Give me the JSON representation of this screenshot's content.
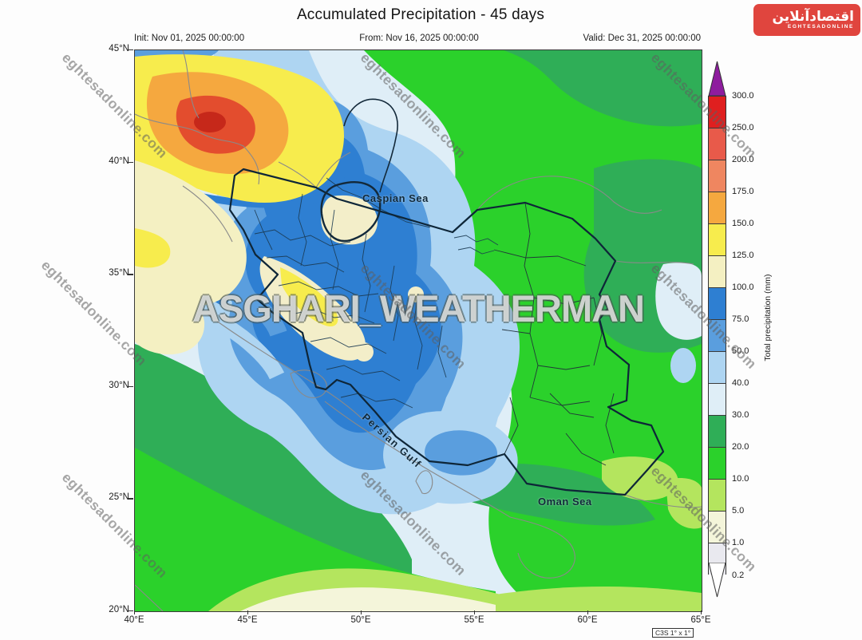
{
  "header": {
    "title": "Accumulated Precipitation - 45 days",
    "init": "Init: Nov 01, 2025 00:00:00",
    "from": "From: Nov 16, 2025 00:00:00",
    "valid": "Valid: Dec 31, 2025 00:00:00"
  },
  "logo": {
    "persian": "اقتصادآنلاین",
    "english": "EGHTESADONLINE"
  },
  "watermark": {
    "text": "eghtesadonline.com"
  },
  "map": {
    "watermark_big": "ASGHARI_WEATHERMAN",
    "grid_note": "C3S 1° x 1°",
    "labels": {
      "caspian": "Caspian Sea",
      "persian_gulf": "Persian Gulf",
      "oman": "Oman Sea"
    },
    "y_ticks": [
      "45°N",
      "40°N",
      "35°N",
      "30°N",
      "25°N",
      "20°N"
    ],
    "x_ticks": [
      "40°E",
      "45°E",
      "50°E",
      "55°E",
      "60°E",
      "65°E"
    ]
  },
  "colorbar": {
    "label": "Total precipitation (mm)",
    "over_color": "#8e1c9e",
    "under_color": "#ffffff",
    "bottom_label": "0.2",
    "segments": [
      {
        "top_label": "300.0",
        "color": "#df1f1f"
      },
      {
        "top_label": "250.0",
        "color": "#e85a4a"
      },
      {
        "top_label": "200.0",
        "color": "#ef8660"
      },
      {
        "top_label": "175.0",
        "color": "#f5a83f"
      },
      {
        "top_label": "150.0",
        "color": "#f7ec4d"
      },
      {
        "top_label": "125.0",
        "color": "#f4f0c2"
      },
      {
        "top_label": "100.0",
        "color": "#2e7fd2"
      },
      {
        "top_label": "75.0",
        "color": "#5a9ede"
      },
      {
        "top_label": "50.0",
        "color": "#aed5f2"
      },
      {
        "top_label": "40.0",
        "color": "#dfeef7"
      },
      {
        "top_label": "30.0",
        "color": "#2fae57"
      },
      {
        "top_label": "20.0",
        "color": "#2bd12b"
      },
      {
        "top_label": "10.0",
        "color": "#b4e55e"
      },
      {
        "top_label": "5.0",
        "color": "#f4f5da"
      },
      {
        "top_label": "1.0",
        "color": "#e9e9ef"
      }
    ]
  },
  "palette": {
    "paleBand": "#dfeef7",
    "lightBlue": "#aed5f2",
    "medBlue": "#5a9ede",
    "strongBlue": "#2e7fd2",
    "paleYellow": "#f4f0c2",
    "yellow": "#f7ec4d",
    "orange": "#f5a83f",
    "red": "#e34d2e",
    "darkRed": "#c6281a",
    "cream": "#f3eec9",
    "ivory": "#f4f5da",
    "lightGreen": "#b4e55e",
    "green": "#2bd12b",
    "medGreen": "#2fae57",
    "countryBorder": "#8a8a8a",
    "iranBorder": "#0e2638",
    "provinceNavy": "#1b3a52",
    "provinceBlack": "#21303a",
    "caspianOutline": "#13293a"
  }
}
